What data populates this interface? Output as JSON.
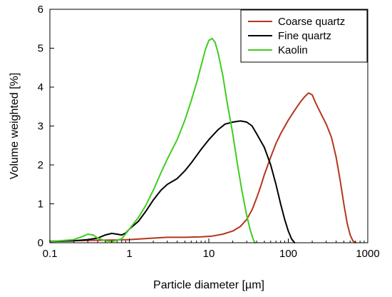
{
  "chart_data": {
    "type": "line",
    "xlabel": "Particle diameter [µm]",
    "ylabel": "Volume weighted [%]",
    "xscale": "log",
    "xlim": [
      0.1,
      1000
    ],
    "ylim": [
      0,
      6
    ],
    "xticks": [
      0.1,
      1,
      10,
      100,
      1000
    ],
    "xtick_labels": [
      "0.1",
      "1",
      "10",
      "100",
      "1000"
    ],
    "yticks": [
      0,
      1,
      2,
      3,
      4,
      5,
      6
    ],
    "ytick_labels": [
      "0",
      "1",
      "2",
      "3",
      "4",
      "5",
      "6"
    ],
    "grid": false,
    "legend_position": "top-right",
    "series": [
      {
        "name": "Coarse quartz",
        "color": "#b5361c",
        "points": [
          [
            0.1,
            0.04
          ],
          [
            0.3,
            0.06
          ],
          [
            0.6,
            0.07
          ],
          [
            1,
            0.08
          ],
          [
            2,
            0.12
          ],
          [
            3,
            0.14
          ],
          [
            5,
            0.14
          ],
          [
            8,
            0.15
          ],
          [
            11,
            0.17
          ],
          [
            15,
            0.22
          ],
          [
            20,
            0.3
          ],
          [
            25,
            0.42
          ],
          [
            30,
            0.6
          ],
          [
            35,
            0.85
          ],
          [
            40,
            1.15
          ],
          [
            45,
            1.45
          ],
          [
            50,
            1.75
          ],
          [
            60,
            2.2
          ],
          [
            70,
            2.55
          ],
          [
            80,
            2.8
          ],
          [
            100,
            3.15
          ],
          [
            120,
            3.4
          ],
          [
            140,
            3.6
          ],
          [
            160,
            3.75
          ],
          [
            180,
            3.85
          ],
          [
            200,
            3.8
          ],
          [
            220,
            3.6
          ],
          [
            260,
            3.3
          ],
          [
            300,
            3.05
          ],
          [
            350,
            2.7
          ],
          [
            400,
            2.2
          ],
          [
            450,
            1.6
          ],
          [
            500,
            1.0
          ],
          [
            550,
            0.5
          ],
          [
            600,
            0.2
          ],
          [
            650,
            0.05
          ],
          [
            700,
            0.0
          ]
        ]
      },
      {
        "name": "Fine quartz",
        "color": "#000000",
        "points": [
          [
            0.1,
            0.03
          ],
          [
            0.2,
            0.05
          ],
          [
            0.3,
            0.08
          ],
          [
            0.4,
            0.12
          ],
          [
            0.5,
            0.2
          ],
          [
            0.6,
            0.24
          ],
          [
            0.7,
            0.22
          ],
          [
            0.8,
            0.2
          ],
          [
            0.9,
            0.25
          ],
          [
            1,
            0.35
          ],
          [
            1.3,
            0.55
          ],
          [
            1.6,
            0.8
          ],
          [
            2,
            1.1
          ],
          [
            2.5,
            1.35
          ],
          [
            3,
            1.5
          ],
          [
            4,
            1.65
          ],
          [
            5,
            1.85
          ],
          [
            6,
            2.05
          ],
          [
            8,
            2.4
          ],
          [
            10,
            2.65
          ],
          [
            13,
            2.9
          ],
          [
            16,
            3.05
          ],
          [
            20,
            3.1
          ],
          [
            25,
            3.13
          ],
          [
            30,
            3.1
          ],
          [
            35,
            3.0
          ],
          [
            40,
            2.8
          ],
          [
            50,
            2.45
          ],
          [
            60,
            2.0
          ],
          [
            70,
            1.5
          ],
          [
            80,
            1.0
          ],
          [
            90,
            0.6
          ],
          [
            100,
            0.3
          ],
          [
            110,
            0.1
          ],
          [
            120,
            0.0
          ]
        ]
      },
      {
        "name": "Kaolin",
        "color": "#3fcc20",
        "points": [
          [
            0.1,
            0.03
          ],
          [
            0.2,
            0.08
          ],
          [
            0.25,
            0.15
          ],
          [
            0.3,
            0.22
          ],
          [
            0.35,
            0.2
          ],
          [
            0.4,
            0.12
          ],
          [
            0.5,
            0.05
          ],
          [
            0.6,
            0.03
          ],
          [
            0.8,
            0.1
          ],
          [
            1,
            0.35
          ],
          [
            1.3,
            0.65
          ],
          [
            1.6,
            0.95
          ],
          [
            2,
            1.35
          ],
          [
            2.5,
            1.8
          ],
          [
            3,
            2.15
          ],
          [
            4,
            2.65
          ],
          [
            5,
            3.15
          ],
          [
            6,
            3.65
          ],
          [
            7,
            4.1
          ],
          [
            8,
            4.55
          ],
          [
            9,
            4.95
          ],
          [
            10,
            5.2
          ],
          [
            11,
            5.25
          ],
          [
            12,
            5.15
          ],
          [
            13,
            4.9
          ],
          [
            15,
            4.3
          ],
          [
            17,
            3.6
          ],
          [
            20,
            2.8
          ],
          [
            23,
            2.0
          ],
          [
            26,
            1.35
          ],
          [
            30,
            0.7
          ],
          [
            33,
            0.35
          ],
          [
            36,
            0.1
          ],
          [
            38,
            0.0
          ]
        ]
      }
    ]
  }
}
